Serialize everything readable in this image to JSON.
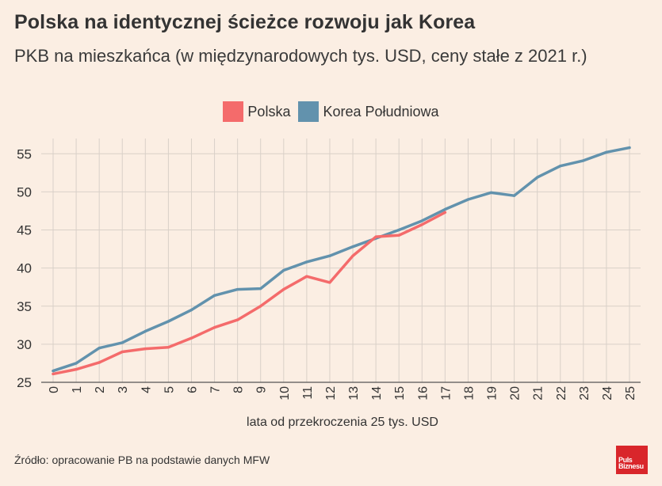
{
  "header": {
    "title": "Polska na identycznej ścieżce rozwoju jak Korea",
    "subtitle": "PKB na mieszkańca (w międzynarodowych tys. USD, ceny stałe z 2021 r.)"
  },
  "colors": {
    "polska": "#f46b6b",
    "korea": "#6292ad",
    "grid": "#d9d0c8",
    "background": "#fbeee3"
  },
  "chart_data": {
    "type": "line",
    "xlabel": "lata od przekroczenia 25 tys. USD",
    "ylabel": "",
    "x": [
      0,
      1,
      2,
      3,
      4,
      5,
      6,
      7,
      8,
      9,
      10,
      11,
      12,
      13,
      14,
      15,
      16,
      17,
      18,
      19,
      20,
      21,
      22,
      23,
      24,
      25
    ],
    "ylim": [
      25,
      57
    ],
    "yticks": [
      25,
      30,
      35,
      40,
      45,
      50,
      55
    ],
    "grid": true,
    "legend_position": "top-center",
    "series": [
      {
        "name": "Polska",
        "x": [
          0,
          1,
          2,
          3,
          4,
          5,
          6,
          7,
          8,
          9,
          10,
          11,
          12,
          13,
          14,
          15,
          16,
          17
        ],
        "values": [
          26.1,
          26.7,
          27.6,
          29.0,
          29.4,
          29.6,
          30.8,
          32.2,
          33.2,
          35.0,
          37.2,
          38.9,
          38.1,
          41.6,
          44.1,
          44.3,
          45.7,
          47.3
        ]
      },
      {
        "name": "Korea Południowa",
        "x": [
          0,
          1,
          2,
          3,
          4,
          5,
          6,
          7,
          8,
          9,
          10,
          11,
          12,
          13,
          14,
          15,
          16,
          17,
          18,
          19,
          20,
          21,
          22,
          23,
          24,
          25
        ],
        "values": [
          26.5,
          27.5,
          29.5,
          30.2,
          31.7,
          33.0,
          34.5,
          36.4,
          37.2,
          37.3,
          39.7,
          40.8,
          41.6,
          42.8,
          43.9,
          45.0,
          46.2,
          47.7,
          49.0,
          49.9,
          49.5,
          51.9,
          53.4,
          54.1,
          55.2,
          55.8
        ]
      }
    ]
  },
  "footer": {
    "source": "Źródło: opracowanie PB na podstawie danych MFW",
    "logo_line1": "Puls",
    "logo_line2": "Biznesu"
  }
}
